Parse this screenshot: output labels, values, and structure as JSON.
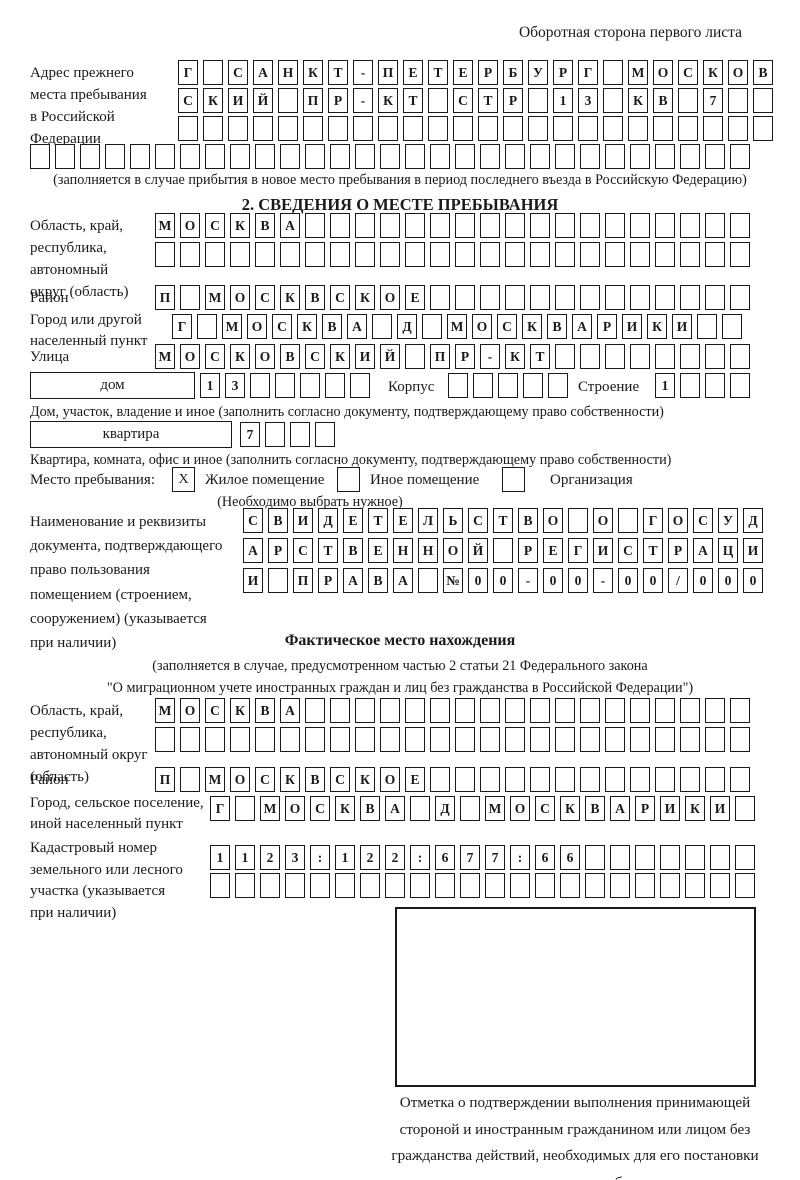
{
  "header": {
    "note": "Оборотная сторона первого листа"
  },
  "prev_address": {
    "label_lines": [
      "Адрес прежнего",
      "места пребывания",
      "в Российской",
      "Федерации"
    ],
    "rows": [
      {
        "text": "Г САНКТ-ПЕТЕРБУРГ МОСКОВ",
        "len": 24
      },
      {
        "text": "СКИЙ ПР-КТ СТР 13 КВ 7",
        "len": 24
      },
      {
        "text": "",
        "len": 24
      },
      {
        "text": "",
        "len": 29
      }
    ],
    "note": "(заполняется в случае прибытия в новое место пребывания в период последнего въезда в Российскую Федерацию)"
  },
  "section2": {
    "title": "2. СВЕДЕНИЯ О МЕСТЕ ПРЕБЫВАНИЯ",
    "oblast": {
      "label_lines": [
        "Область, край,",
        "республика,",
        "автономный",
        "округ (область)"
      ],
      "rows": [
        {
          "text": "МОСКВА",
          "len": 24
        },
        {
          "text": "",
          "len": 24
        }
      ]
    },
    "raion": {
      "label": "Район",
      "row": {
        "text": "П МОСКВСКОЕ",
        "len": 24
      }
    },
    "gorod": {
      "label_lines": [
        "Город или другой",
        "населенный пункт"
      ],
      "row": {
        "text": "Г МОСКВА Д МОСКВАРИКИ",
        "len": 23
      }
    },
    "ulitsa": {
      "label": "Улица",
      "row": {
        "text": "МОСКОВСКИЙ ПР-КТ",
        "len": 24
      }
    },
    "dom": {
      "box_label": "дом",
      "cells": {
        "text": "13",
        "len": 7
      },
      "korpus_label": "Корпус",
      "korpus_cells": {
        "text": "",
        "len": 5
      },
      "stroenie_label": "Строение",
      "stroenie_cells": {
        "text": "1",
        "len": 4
      },
      "caption": "Дом, участок, владение и иное (заполнить согласно документу, подтверждающему право собственности)"
    },
    "kvartira": {
      "box_label": "квартира",
      "cells": {
        "text": "7",
        "len": 4
      },
      "caption": "Квартира, комната, офис и иное (заполнить согласно документу, подтверждающему право собственности)"
    },
    "mesto": {
      "label": "Место пребывания:",
      "options": [
        {
          "label": "Жилое помещение",
          "mark": "X"
        },
        {
          "label": "Иное помещение",
          "mark": ""
        },
        {
          "label": "Организация",
          "mark": ""
        }
      ],
      "note": "(Необходимо выбрать нужное)"
    },
    "doc": {
      "label_lines": [
        "Наименование и реквизиты",
        "документа, подтверждающего",
        "право пользования",
        "помещением (строением,",
        "сооружением) (указывается",
        "при наличии)"
      ],
      "rows": [
        {
          "text": "СВИДЕТЕЛЬСТВО О ГОСУД",
          "len": 21
        },
        {
          "text": "АРСТВЕННОЙ РЕГИСТРАЦИ",
          "len": 21
        },
        {
          "text": "И ПРАВА №00-00-00/000",
          "len": 21
        }
      ]
    }
  },
  "fact": {
    "title": "Фактическое место нахождения",
    "subtitle_lines": [
      "(заполняется в случае, предусмотренном частью 2 статьи 21 Федерального закона",
      "\"О миграционном учете иностранных граждан и лиц без гражданства в Российской Федерации\")"
    ],
    "oblast": {
      "label_lines": [
        "Область, край,",
        "республика,",
        "автономный округ",
        "(область)"
      ],
      "rows": [
        {
          "text": "МОСКВА",
          "len": 24
        },
        {
          "text": "",
          "len": 24
        }
      ]
    },
    "raion": {
      "label": "Район",
      "row": {
        "text": "П МОСКВСКОЕ",
        "len": 24
      }
    },
    "gorod": {
      "label_lines": [
        "Город, сельское поселение,",
        "иной населенный пункт"
      ],
      "row": {
        "text": "Г МОСКВА Д МОСКВАРИКИ",
        "len": 22
      }
    },
    "kadastr": {
      "label_lines": [
        "Кадастровый номер",
        "земельного или лесного",
        "участка (указывается",
        "при наличии)"
      ],
      "rows": [
        {
          "text": "1123:122:677:66",
          "len": 22
        },
        {
          "text": "",
          "len": 22
        }
      ]
    }
  },
  "stamp": {
    "caption_lines": [
      "Отметка о подтверждении выполнения принимающей",
      "стороной и иностранным гражданином или лицом без",
      "гражданства действий, необходимых для его постановки",
      "на учет по месту пребывания"
    ]
  }
}
